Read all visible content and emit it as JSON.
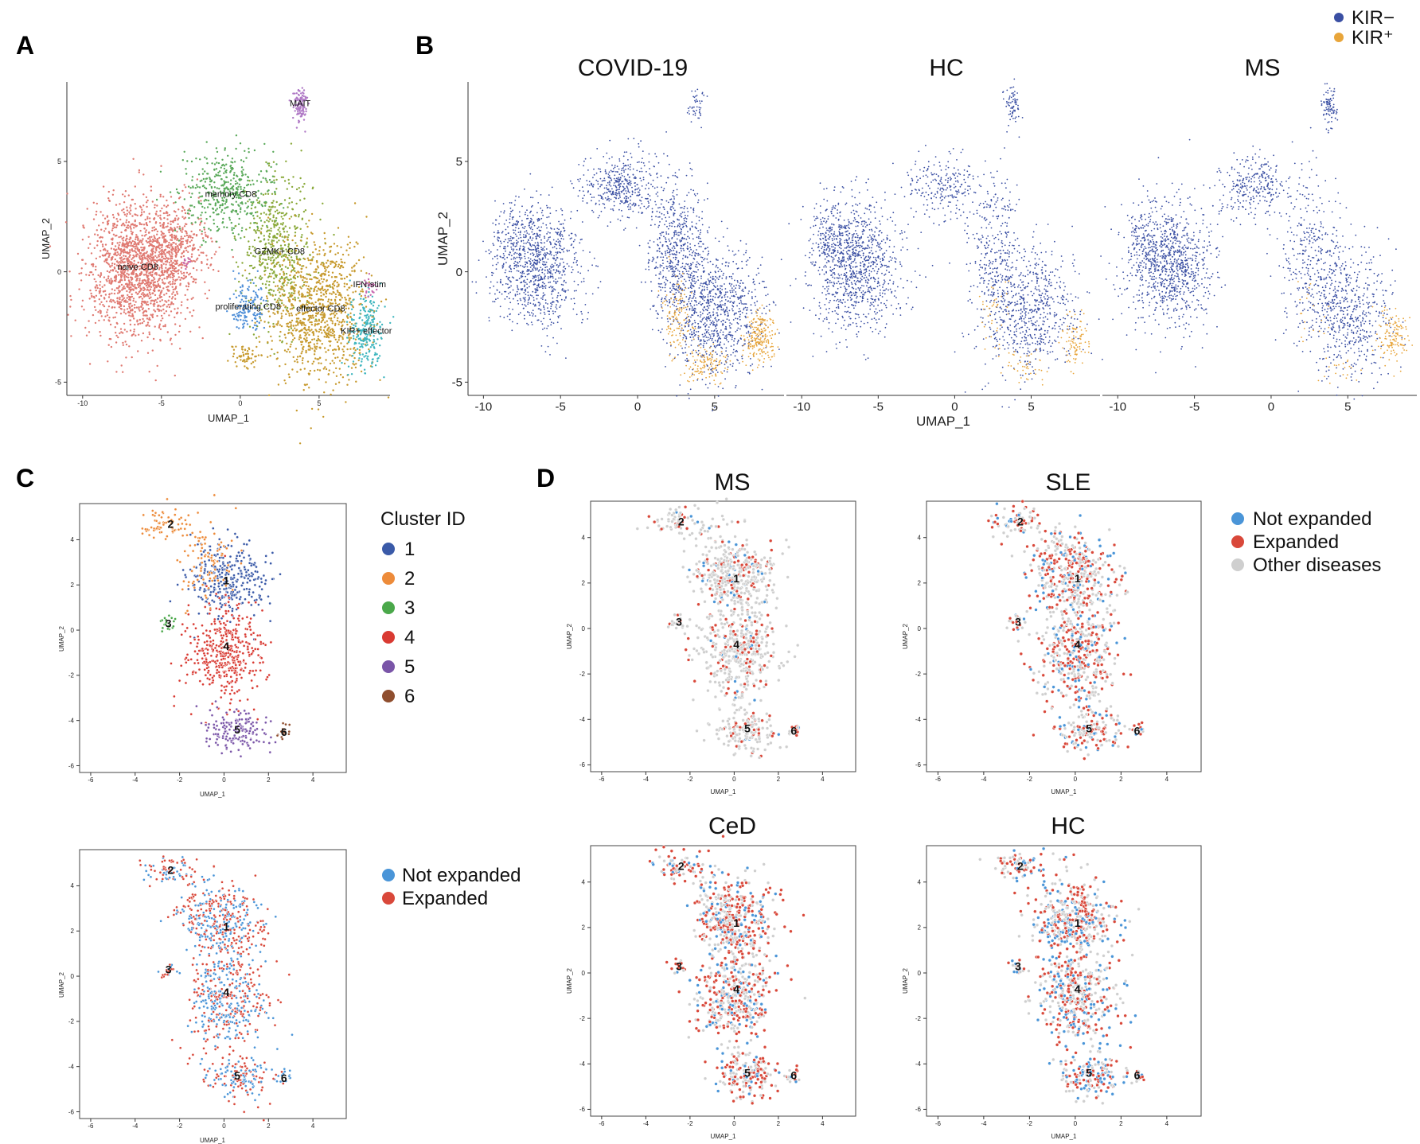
{
  "panel_letters": [
    "A",
    "B",
    "C",
    "D"
  ],
  "colors": {
    "naive": "#e07a72",
    "memory": "#5aa95a",
    "gzmk": "#8aa93a",
    "effector": "#c79a2e",
    "kir_eff": "#3fb6bf",
    "prolif": "#4f8fd8",
    "mait": "#b07ac6",
    "ifn": "#c86ab0",
    "kir_neg": "#3a4fa3",
    "kir_pos": "#e8a53a",
    "c1": "#3a5aa8",
    "c2": "#ed8b3a",
    "c3": "#4aa84a",
    "c4": "#d93a32",
    "c5": "#7a55a8",
    "c6": "#8f4e2e",
    "not_expanded": "#4a95d8",
    "expanded": "#d9483a",
    "other": "#cfcfcf"
  },
  "chart_data": [
    {
      "panel": "A",
      "type": "scatter",
      "title": "",
      "xlabel": "UMAP_1",
      "ylabel": "UMAP_2",
      "xlim": [
        -11,
        9.5
      ],
      "ylim": [
        -5.6,
        8.6
      ],
      "xticks": [
        -10,
        -5,
        0,
        5
      ],
      "yticks": [
        -5,
        0,
        5
      ],
      "series": [
        {
          "name": "naive CD8",
          "color_key": "naive",
          "center": [
            -6.5,
            0.1
          ]
        },
        {
          "name": "memory CD8",
          "color_key": "memory",
          "center": [
            -0.6,
            3.4
          ]
        },
        {
          "name": "GZMK+ CD8",
          "color_key": "gzmk",
          "center": [
            2.5,
            0.8
          ]
        },
        {
          "name": "effector CD8",
          "color_key": "effector",
          "center": [
            5.1,
            -1.8
          ]
        },
        {
          "name": "KIR+ effector",
          "color_key": "kir_eff",
          "center": [
            8.0,
            -2.8
          ]
        },
        {
          "name": "proliferating CD8",
          "color_key": "prolif",
          "center": [
            0.5,
            -1.7
          ]
        },
        {
          "name": "MAIT",
          "color_key": "mait",
          "center": [
            3.8,
            7.5
          ]
        },
        {
          "name": "IFN-stim",
          "color_key": "ifn",
          "center": [
            8.2,
            -0.7
          ]
        }
      ]
    },
    {
      "panel": "B",
      "type": "scatter",
      "xlabel": "UMAP_1",
      "ylabel": "UMAP_2",
      "xlim": [
        -11,
        9.5
      ],
      "ylim": [
        -5.6,
        8.6
      ],
      "xticks": [
        -10,
        -5,
        0,
        5
      ],
      "yticks": [
        -5,
        0,
        5
      ],
      "facets": [
        "COVID-19",
        "HC",
        "MS"
      ],
      "legend": {
        "placement": "top-right",
        "entries": [
          "KIR−",
          "KIR⁺"
        ]
      }
    },
    {
      "panel": "C-top",
      "type": "scatter",
      "xlabel": "UMAP_1",
      "ylabel": "UMAP_2",
      "xlim": [
        -6.5,
        5.5
      ],
      "ylim": [
        -6.3,
        5.6
      ],
      "xticks": [
        -6,
        -4,
        -2,
        0,
        2,
        4
      ],
      "yticks": [
        -6,
        -4,
        -2,
        0,
        2,
        4
      ],
      "legend_title": "Cluster ID",
      "clusters": [
        {
          "id": "1",
          "color_key": "c1",
          "center": [
            0.1,
            2.2
          ]
        },
        {
          "id": "2",
          "color_key": "c2",
          "center": [
            -2.4,
            4.7
          ]
        },
        {
          "id": "3",
          "color_key": "c3",
          "center": [
            -2.5,
            0.3
          ]
        },
        {
          "id": "4",
          "color_key": "c4",
          "center": [
            0.1,
            -0.7
          ]
        },
        {
          "id": "5",
          "color_key": "c5",
          "center": [
            0.6,
            -4.4
          ]
        },
        {
          "id": "6",
          "color_key": "c6",
          "center": [
            2.7,
            -4.5
          ]
        }
      ]
    },
    {
      "panel": "C-bottom",
      "type": "scatter",
      "xlabel": "UMAP_1",
      "ylabel": "UMAP_2",
      "xlim": [
        -6.5,
        5.5
      ],
      "ylim": [
        -6.3,
        5.6
      ],
      "xticks": [
        -6,
        -4,
        -2,
        0,
        2,
        4
      ],
      "yticks": [
        -6,
        -4,
        -2,
        0,
        2,
        4
      ],
      "legend": [
        "Not expanded",
        "Expanded"
      ]
    },
    {
      "panel": "D",
      "type": "scatter",
      "xlabel": "UMAP_1",
      "ylabel": "UMAP_2",
      "xlim": [
        -6.5,
        5.5
      ],
      "ylim": [
        -6.3,
        5.6
      ],
      "xticks": [
        -6,
        -4,
        -2,
        0,
        2,
        4
      ],
      "yticks": [
        -6,
        -4,
        -2,
        0,
        2,
        4
      ],
      "facets": [
        "MS",
        "SLE",
        "CeD",
        "HC"
      ],
      "legend": [
        "Not expanded",
        "Expanded",
        "Other diseases"
      ]
    }
  ]
}
